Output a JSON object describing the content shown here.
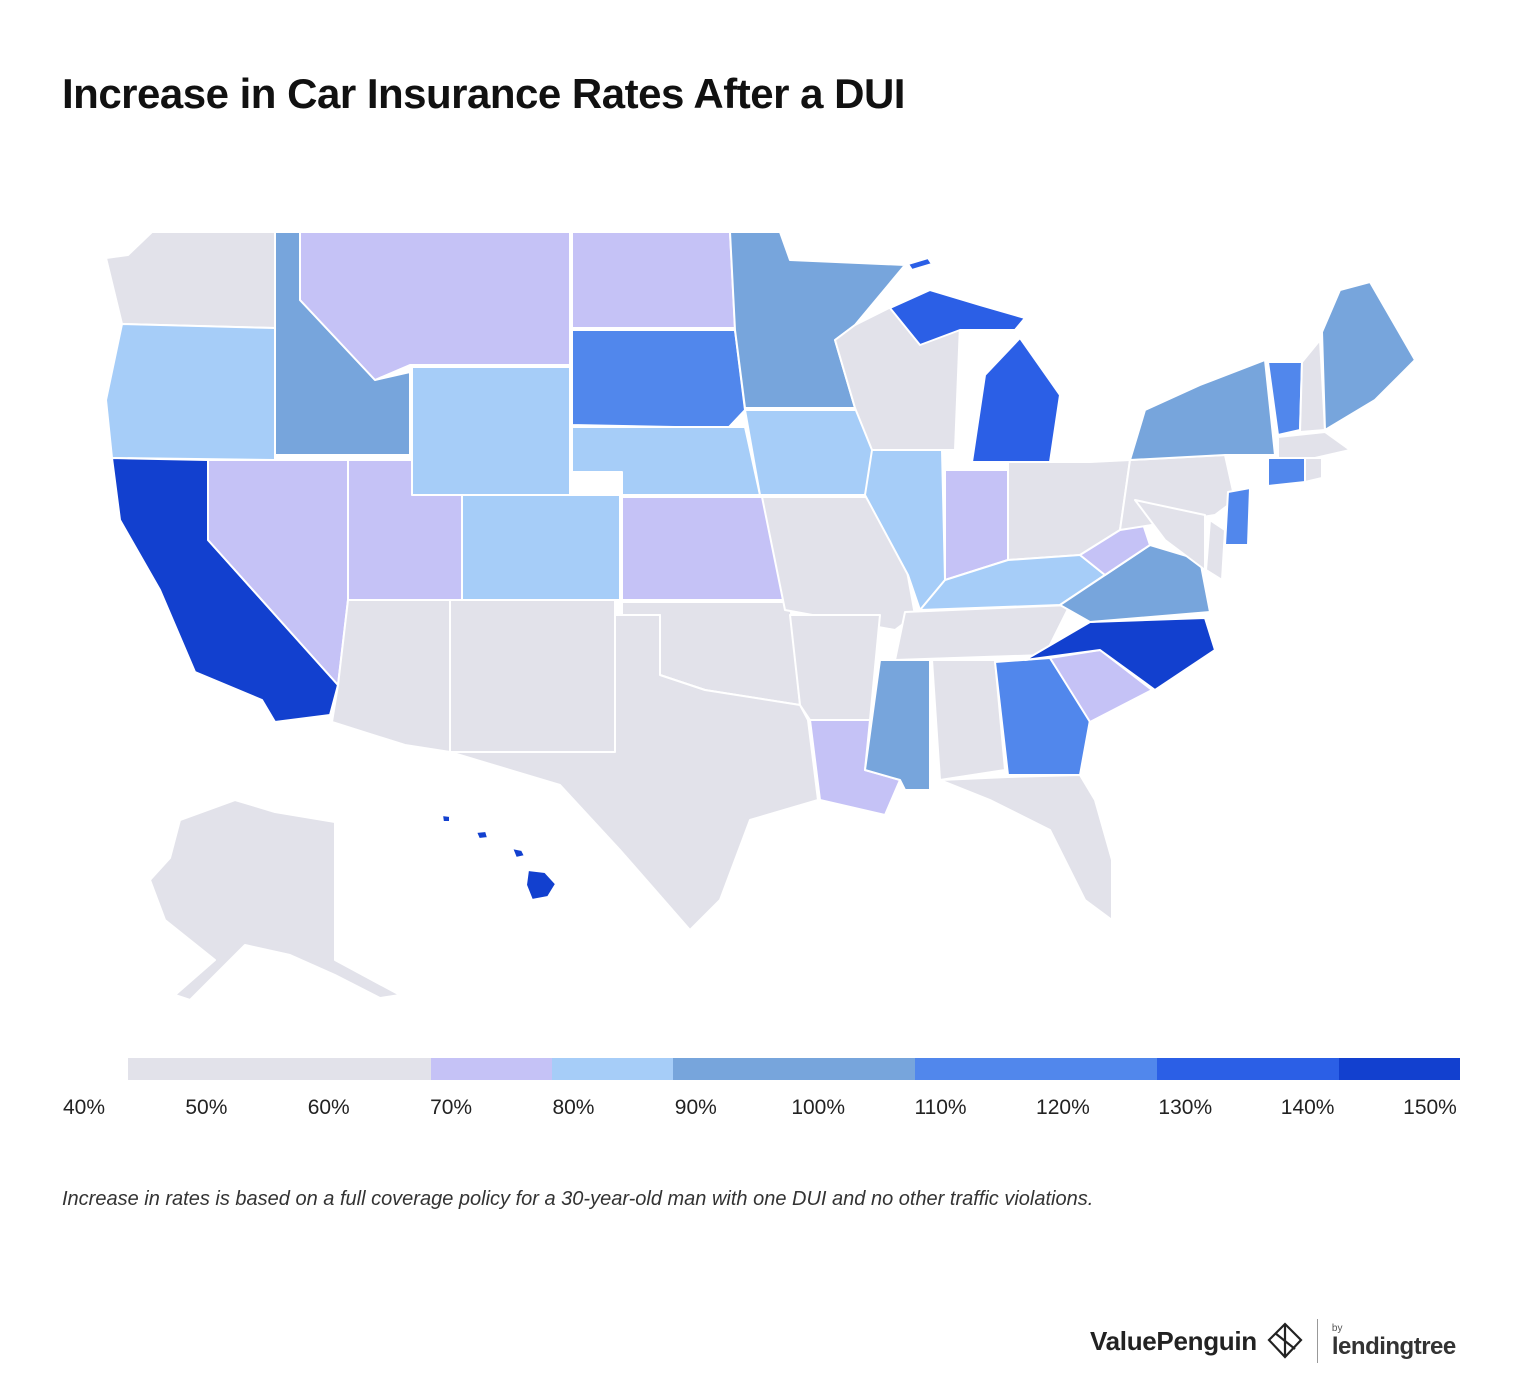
{
  "title": "Increase in Car Insurance Rates After a DUI",
  "footnote": "Increase in rates is based on a full coverage policy for a 30-year-old man with one DUI and no other traffic violations.",
  "legend": {
    "ticks": [
      "40%",
      "50%",
      "60%",
      "70%",
      "80%",
      "90%",
      "100%",
      "110%",
      "120%",
      "130%",
      "140%",
      "150%"
    ],
    "bins": [
      {
        "from": 40,
        "to": 65,
        "color": "#e2e2ea"
      },
      {
        "from": 65,
        "to": 75,
        "color": "#c5c2f6"
      },
      {
        "from": 75,
        "to": 85,
        "color": "#a6cdf8"
      },
      {
        "from": 85,
        "to": 105,
        "color": "#77a5dc"
      },
      {
        "from": 105,
        "to": 125,
        "color": "#5187ec"
      },
      {
        "from": 125,
        "to": 140,
        "color": "#2b5fe6"
      },
      {
        "from": 140,
        "to": 150,
        "color": "#1240cf"
      }
    ]
  },
  "brand": {
    "name": "ValuePenguin",
    "by": "by",
    "partner": "lendingtree"
  },
  "chart_data": {
    "type": "choropleth",
    "metric": "Increase in car insurance rates after a DUI (%)",
    "scale_min": 40,
    "scale_max": 150,
    "states": [
      {
        "state": "WA",
        "value": 50
      },
      {
        "state": "OR",
        "value": 80
      },
      {
        "state": "CA",
        "value": 145
      },
      {
        "state": "ID",
        "value": 95
      },
      {
        "state": "NV",
        "value": 70
      },
      {
        "state": "MT",
        "value": 70
      },
      {
        "state": "WY",
        "value": 80
      },
      {
        "state": "UT",
        "value": 70
      },
      {
        "state": "AZ",
        "value": 62
      },
      {
        "state": "CO",
        "value": 80
      },
      {
        "state": "NM",
        "value": 50
      },
      {
        "state": "ND",
        "value": 70
      },
      {
        "state": "SD",
        "value": 115
      },
      {
        "state": "NE",
        "value": 80
      },
      {
        "state": "KS",
        "value": 70
      },
      {
        "state": "OK",
        "value": 50
      },
      {
        "state": "TX",
        "value": 50
      },
      {
        "state": "MN",
        "value": 95
      },
      {
        "state": "IA",
        "value": 80
      },
      {
        "state": "MO",
        "value": 50
      },
      {
        "state": "AR",
        "value": 50
      },
      {
        "state": "LA",
        "value": 70
      },
      {
        "state": "WI",
        "value": 60
      },
      {
        "state": "IL",
        "value": 80
      },
      {
        "state": "MS",
        "value": 95
      },
      {
        "state": "MI",
        "value": 135
      },
      {
        "state": "IN",
        "value": 70
      },
      {
        "state": "OH",
        "value": 50
      },
      {
        "state": "KY",
        "value": 80
      },
      {
        "state": "TN",
        "value": 50
      },
      {
        "state": "AL",
        "value": 60
      },
      {
        "state": "GA",
        "value": 110
      },
      {
        "state": "FL",
        "value": 50
      },
      {
        "state": "SC",
        "value": 70
      },
      {
        "state": "NC",
        "value": 140
      },
      {
        "state": "VA",
        "value": 95
      },
      {
        "state": "WV",
        "value": 70
      },
      {
        "state": "PA",
        "value": 62
      },
      {
        "state": "NY",
        "value": 95
      },
      {
        "state": "VT",
        "value": 110
      },
      {
        "state": "NH",
        "value": 50
      },
      {
        "state": "ME",
        "value": 95
      },
      {
        "state": "MA",
        "value": 62
      },
      {
        "state": "RI",
        "value": 60
      },
      {
        "state": "CT",
        "value": 120
      },
      {
        "state": "NJ",
        "value": 115
      },
      {
        "state": "DE",
        "value": 62
      },
      {
        "state": "MD",
        "value": 62
      },
      {
        "state": "AK",
        "value": 50
      },
      {
        "state": "HI",
        "value": 140
      }
    ]
  }
}
